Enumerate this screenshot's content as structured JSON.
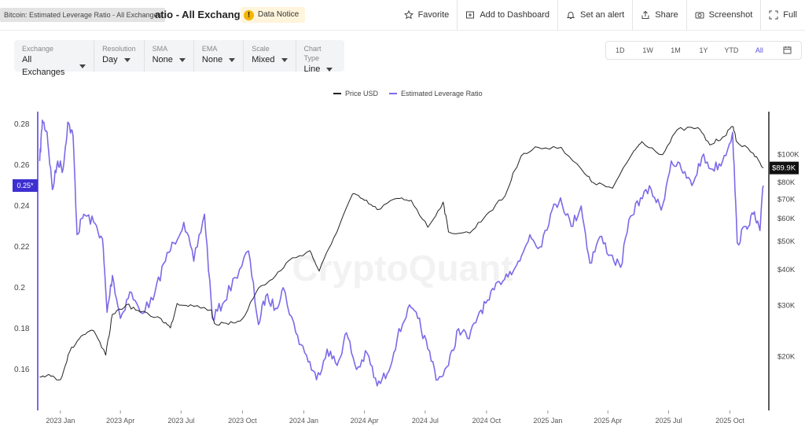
{
  "header": {
    "tooltip": "Bitcoin: Estimated Leverage Ratio - All Exchanges",
    "title": "atio - All Exchanges",
    "notice_icon": "!",
    "notice": "Data Notice"
  },
  "actions": [
    {
      "label": "Favorite",
      "icon": "star-icon"
    },
    {
      "label": "Add to Dashboard",
      "icon": "dashboard-add-icon"
    },
    {
      "label": "Set an alert",
      "icon": "bell-icon"
    },
    {
      "label": "Share",
      "icon": "share-icon"
    },
    {
      "label": "Screenshot",
      "icon": "camera-icon"
    },
    {
      "label": "Full",
      "icon": "fullscreen-icon"
    }
  ],
  "controls": [
    {
      "label": "Exchange",
      "value": "All Exchanges"
    },
    {
      "label": "Resolution",
      "value": "Day"
    },
    {
      "label": "SMA",
      "value": "None"
    },
    {
      "label": "EMA",
      "value": "None"
    },
    {
      "label": "Scale",
      "value": "Mixed"
    },
    {
      "label": "Chart Type",
      "value": "Line"
    }
  ],
  "ranges": [
    "1D",
    "1W",
    "1M",
    "1Y",
    "YTD",
    "All"
  ],
  "active_range": "All",
  "colors": {
    "price": "#222222",
    "leverage": "#7b6ae8",
    "accent": "#5b4de0",
    "badge": "#3d2fd0"
  },
  "chart_data": {
    "type": "line",
    "watermark": "CryptoQuant",
    "x_ticks": [
      "2023 Jan",
      "2023 Apr",
      "2023 Jul",
      "2023 Oct",
      "2024 Jan",
      "2024 Apr",
      "2024 Jul",
      "2024 Oct",
      "2025 Jan",
      "2025 Apr",
      "2025 Jul",
      "2025 Oct"
    ],
    "left_axis": {
      "ticks": [
        "0.28",
        "0.26",
        "0.24",
        "0.22",
        "0.2",
        "0.18",
        "0.16"
      ],
      "range": [
        0.14,
        0.29
      ],
      "current": "0.25*"
    },
    "right_axis": {
      "scale": "log",
      "ticks": [
        "$100K",
        "$80K",
        "$70K",
        "$60K",
        "$50K",
        "$40K",
        "$30K",
        "$20K"
      ],
      "current": "$89.9K"
    },
    "series": [
      {
        "name": "Price USD",
        "axis": "right",
        "points": [
          [
            "2022-12-01",
            17000
          ],
          [
            "2022-12-15",
            17300
          ],
          [
            "2023-01-01",
            16600
          ],
          [
            "2023-01-15",
            20800
          ],
          [
            "2023-02-01",
            23500
          ],
          [
            "2023-02-20",
            24500
          ],
          [
            "2023-03-10",
            20200
          ],
          [
            "2023-03-20",
            28000
          ],
          [
            "2023-04-10",
            30200
          ],
          [
            "2023-05-01",
            28500
          ],
          [
            "2023-06-01",
            27000
          ],
          [
            "2023-06-15",
            25100
          ],
          [
            "2023-06-25",
            30500
          ],
          [
            "2023-07-15",
            30200
          ],
          [
            "2023-08-15",
            29000
          ],
          [
            "2023-08-20",
            26000
          ],
          [
            "2023-09-10",
            25800
          ],
          [
            "2023-10-01",
            27000
          ],
          [
            "2023-10-25",
            34500
          ],
          [
            "2023-11-15",
            37000
          ],
          [
            "2023-12-10",
            43000
          ],
          [
            "2024-01-10",
            46500
          ],
          [
            "2024-01-24",
            39500
          ],
          [
            "2024-02-15",
            51500
          ],
          [
            "2024-03-14",
            73000
          ],
          [
            "2024-04-01",
            69500
          ],
          [
            "2024-04-20",
            64500
          ],
          [
            "2024-05-20",
            70500
          ],
          [
            "2024-06-10",
            69500
          ],
          [
            "2024-07-05",
            56000
          ],
          [
            "2024-07-28",
            68500
          ],
          [
            "2024-08-05",
            54000
          ],
          [
            "2024-09-06",
            53500
          ],
          [
            "2024-10-01",
            62000
          ],
          [
            "2024-10-29",
            72000
          ],
          [
            "2024-11-12",
            88000
          ],
          [
            "2024-11-22",
            99000
          ],
          [
            "2024-12-17",
            106000
          ],
          [
            "2025-01-21",
            106000
          ],
          [
            "2025-02-25",
            86000
          ],
          [
            "2025-03-10",
            80000
          ],
          [
            "2025-04-08",
            76500
          ],
          [
            "2025-05-10",
            103000
          ],
          [
            "2025-05-22",
            111000
          ],
          [
            "2025-06-22",
            100000
          ],
          [
            "2025-07-14",
            122000
          ],
          [
            "2025-08-14",
            124000
          ],
          [
            "2025-09-01",
            108000
          ],
          [
            "2025-09-20",
            115000
          ],
          [
            "2025-10-06",
            125000
          ],
          [
            "2025-10-11",
            111000
          ],
          [
            "2025-11-05",
            101000
          ],
          [
            "2025-11-20",
            89900
          ]
        ]
      },
      {
        "name": "Estimated Leverage Ratio",
        "axis": "left",
        "points": [
          [
            "2022-12-01",
            0.262
          ],
          [
            "2022-12-05",
            0.282
          ],
          [
            "2022-12-12",
            0.276
          ],
          [
            "2022-12-20",
            0.248
          ],
          [
            "2022-12-28",
            0.262
          ],
          [
            "2023-01-05",
            0.258
          ],
          [
            "2023-01-12",
            0.281
          ],
          [
            "2023-01-20",
            0.274
          ],
          [
            "2023-01-26",
            0.226
          ],
          [
            "2023-02-05",
            0.236
          ],
          [
            "2023-02-20",
            0.232
          ],
          [
            "2023-03-05",
            0.224
          ],
          [
            "2023-03-12",
            0.188
          ],
          [
            "2023-03-20",
            0.206
          ],
          [
            "2023-04-01",
            0.185
          ],
          [
            "2023-04-15",
            0.198
          ],
          [
            "2023-05-01",
            0.188
          ],
          [
            "2023-05-20",
            0.194
          ],
          [
            "2023-06-05",
            0.212
          ],
          [
            "2023-06-20",
            0.222
          ],
          [
            "2023-07-05",
            0.232
          ],
          [
            "2023-07-20",
            0.213
          ],
          [
            "2023-08-05",
            0.236
          ],
          [
            "2023-08-17",
            0.185
          ],
          [
            "2023-09-01",
            0.192
          ],
          [
            "2023-09-20",
            0.205
          ],
          [
            "2023-10-10",
            0.218
          ],
          [
            "2023-10-25",
            0.182
          ],
          [
            "2023-11-05",
            0.196
          ],
          [
            "2023-11-20",
            0.19
          ],
          [
            "2023-12-01",
            0.2
          ],
          [
            "2023-12-20",
            0.178
          ],
          [
            "2024-01-05",
            0.167
          ],
          [
            "2024-01-20",
            0.155
          ],
          [
            "2024-02-05",
            0.17
          ],
          [
            "2024-02-20",
            0.162
          ],
          [
            "2024-03-05",
            0.178
          ],
          [
            "2024-03-20",
            0.16
          ],
          [
            "2024-04-05",
            0.168
          ],
          [
            "2024-04-20",
            0.152
          ],
          [
            "2024-05-05",
            0.158
          ],
          [
            "2024-05-20",
            0.175
          ],
          [
            "2024-06-05",
            0.19
          ],
          [
            "2024-06-20",
            0.185
          ],
          [
            "2024-07-05",
            0.17
          ],
          [
            "2024-07-20",
            0.155
          ],
          [
            "2024-08-05",
            0.162
          ],
          [
            "2024-08-20",
            0.18
          ],
          [
            "2024-09-05",
            0.175
          ],
          [
            "2024-09-20",
            0.188
          ],
          [
            "2024-10-05",
            0.194
          ],
          [
            "2024-10-20",
            0.203
          ],
          [
            "2024-11-05",
            0.208
          ],
          [
            "2024-11-20",
            0.213
          ],
          [
            "2024-12-05",
            0.226
          ],
          [
            "2024-12-20",
            0.22
          ],
          [
            "2025-01-05",
            0.236
          ],
          [
            "2025-01-20",
            0.244
          ],
          [
            "2025-02-05",
            0.23
          ],
          [
            "2025-02-20",
            0.24
          ],
          [
            "2025-03-05",
            0.212
          ],
          [
            "2025-03-20",
            0.225
          ],
          [
            "2025-04-05",
            0.216
          ],
          [
            "2025-04-20",
            0.21
          ],
          [
            "2025-05-05",
            0.235
          ],
          [
            "2025-05-20",
            0.244
          ],
          [
            "2025-06-05",
            0.248
          ],
          [
            "2025-06-20",
            0.238
          ],
          [
            "2025-07-05",
            0.262
          ],
          [
            "2025-07-20",
            0.258
          ],
          [
            "2025-08-05",
            0.25
          ],
          [
            "2025-08-20",
            0.264
          ],
          [
            "2025-09-05",
            0.258
          ],
          [
            "2025-09-20",
            0.262
          ],
          [
            "2025-10-05",
            0.276
          ],
          [
            "2025-10-12",
            0.222
          ],
          [
            "2025-10-25",
            0.23
          ],
          [
            "2025-11-05",
            0.236
          ],
          [
            "2025-11-15",
            0.228
          ],
          [
            "2025-11-20",
            0.25
          ]
        ]
      }
    ]
  }
}
